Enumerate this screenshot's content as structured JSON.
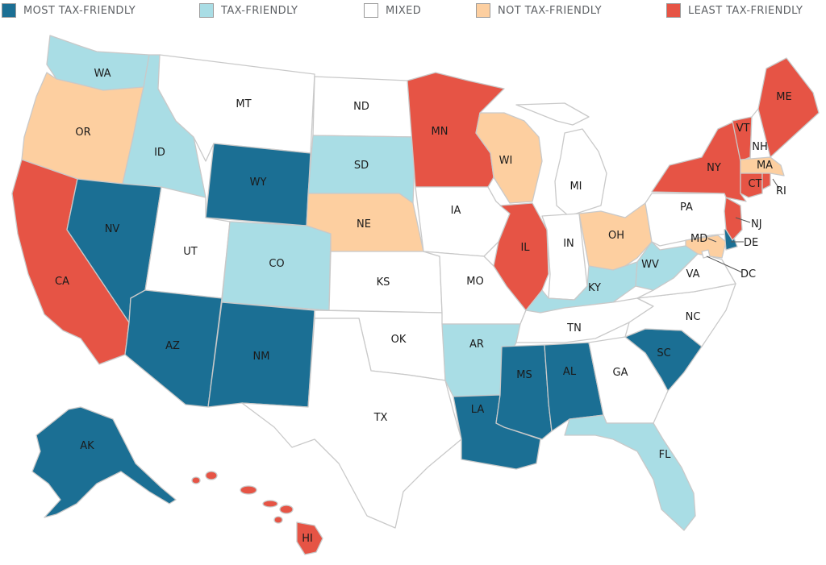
{
  "colors": {
    "most": "#1b6f94",
    "tax": "#a9dde5",
    "mixed": "#ffffff",
    "not": "#fdcfa0",
    "least": "#e65445"
  },
  "legend": [
    {
      "key": "most",
      "label": "MOST TAX-FRIENDLY"
    },
    {
      "key": "tax",
      "label": "TAX-FRIENDLY"
    },
    {
      "key": "mixed",
      "label": "MIXED"
    },
    {
      "key": "not",
      "label": "NOT TAX-FRIENDLY"
    },
    {
      "key": "least",
      "label": "LEAST TAX-FRIENDLY"
    }
  ],
  "states": {
    "WA": {
      "label": "WA",
      "cat": "tax"
    },
    "OR": {
      "label": "OR",
      "cat": "not"
    },
    "CA": {
      "label": "CA",
      "cat": "least"
    },
    "ID": {
      "label": "ID",
      "cat": "tax"
    },
    "NV": {
      "label": "NV",
      "cat": "most"
    },
    "MT": {
      "label": "MT",
      "cat": "mixed"
    },
    "WY": {
      "label": "WY",
      "cat": "most"
    },
    "UT": {
      "label": "UT",
      "cat": "mixed"
    },
    "AZ": {
      "label": "AZ",
      "cat": "most"
    },
    "CO": {
      "label": "CO",
      "cat": "tax"
    },
    "NM": {
      "label": "NM",
      "cat": "most"
    },
    "ND": {
      "label": "ND",
      "cat": "mixed"
    },
    "SD": {
      "label": "SD",
      "cat": "tax"
    },
    "NE": {
      "label": "NE",
      "cat": "not"
    },
    "KS": {
      "label": "KS",
      "cat": "mixed"
    },
    "OK": {
      "label": "OK",
      "cat": "mixed"
    },
    "TX": {
      "label": "TX",
      "cat": "mixed"
    },
    "MN": {
      "label": "MN",
      "cat": "least"
    },
    "IA": {
      "label": "IA",
      "cat": "mixed"
    },
    "MO": {
      "label": "MO",
      "cat": "mixed"
    },
    "AR": {
      "label": "AR",
      "cat": "tax"
    },
    "LA": {
      "label": "LA",
      "cat": "most"
    },
    "WI": {
      "label": "WI",
      "cat": "not"
    },
    "IL": {
      "label": "IL",
      "cat": "least"
    },
    "MI": {
      "label": "MI",
      "cat": "mixed"
    },
    "IN": {
      "label": "IN",
      "cat": "mixed"
    },
    "OH": {
      "label": "OH",
      "cat": "not"
    },
    "KY": {
      "label": "KY",
      "cat": "tax"
    },
    "TN": {
      "label": "TN",
      "cat": "mixed"
    },
    "MS": {
      "label": "MS",
      "cat": "most"
    },
    "AL": {
      "label": "AL",
      "cat": "most"
    },
    "GA": {
      "label": "GA",
      "cat": "mixed"
    },
    "FL": {
      "label": "FL",
      "cat": "tax"
    },
    "SC": {
      "label": "SC",
      "cat": "most"
    },
    "NC": {
      "label": "NC",
      "cat": "mixed"
    },
    "VA": {
      "label": "VA",
      "cat": "mixed"
    },
    "WV": {
      "label": "WV",
      "cat": "tax"
    },
    "PA": {
      "label": "PA",
      "cat": "mixed"
    },
    "NY": {
      "label": "NY",
      "cat": "least"
    },
    "NJ": {
      "label": "NJ",
      "cat": "least"
    },
    "DE": {
      "label": "DE",
      "cat": "most"
    },
    "MD": {
      "label": "MD",
      "cat": "not"
    },
    "DC": {
      "label": "DC",
      "cat": "mixed"
    },
    "CT": {
      "label": "CT",
      "cat": "least"
    },
    "RI": {
      "label": "RI",
      "cat": "least"
    },
    "MA": {
      "label": "MA",
      "cat": "not"
    },
    "VT": {
      "label": "VT",
      "cat": "least"
    },
    "NH": {
      "label": "NH",
      "cat": "mixed"
    },
    "ME": {
      "label": "ME",
      "cat": "least"
    },
    "AK": {
      "label": "AK",
      "cat": "most"
    },
    "HI": {
      "label": "HI",
      "cat": "least"
    }
  }
}
